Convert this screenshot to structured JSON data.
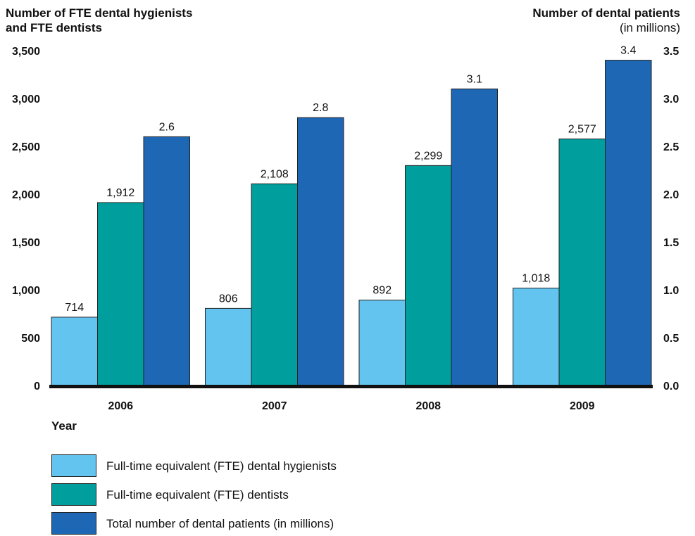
{
  "chart_data": {
    "type": "bar",
    "categories": [
      "2006",
      "2007",
      "2008",
      "2009"
    ],
    "series": [
      {
        "name": "Full-time equivalent (FTE) dental hygienists",
        "axis": "left",
        "color": "#63c5ef",
        "values": [
          714,
          806,
          892,
          1018
        ],
        "labels": [
          "714",
          "806",
          "892",
          "1,018"
        ]
      },
      {
        "name": "Full-time equivalent (FTE) dentists",
        "axis": "left",
        "color": "#009f9d",
        "values": [
          1912,
          2108,
          2299,
          2577
        ],
        "labels": [
          "1,912",
          "2,108",
          "2,299",
          "2,577"
        ]
      },
      {
        "name": "Total number of dental patients (in millions)",
        "axis": "right",
        "color": "#1d67b4",
        "values": [
          2.6,
          2.8,
          3.1,
          3.4
        ],
        "labels": [
          "2.6",
          "2.8",
          "3.1",
          "3.4"
        ]
      }
    ],
    "xlabel": "Year",
    "ylabel_left_line1": "Number of FTE dental hygienists",
    "ylabel_left_line2": "and FTE dentists",
    "ylabel_right": "Number of dental patients",
    "ylabel_right_unit": "(in millions)",
    "ylim_left": [
      0,
      3500
    ],
    "ylim_right": [
      0,
      3.5
    ],
    "yticks_left": [
      "0",
      "500",
      "1,000",
      "1,500",
      "2,000",
      "2,500",
      "3,000",
      "3,500"
    ],
    "yticks_right": [
      "0.0",
      "0.5",
      "1.0",
      "1.5",
      "2.0",
      "2.5",
      "3.0",
      "3.5"
    ],
    "grid": false,
    "legend_position": "bottom-left"
  }
}
